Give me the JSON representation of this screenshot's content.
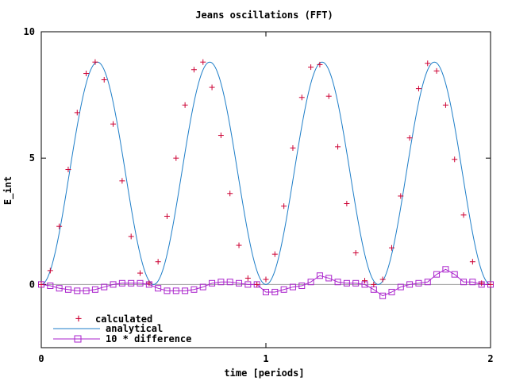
{
  "chart_data": {
    "type": "line",
    "title": "Jeans oscillations (FFT)",
    "xlabel": "time [periods]",
    "ylabel": "E_int",
    "xlim": [
      0,
      2
    ],
    "ylim": [
      -2.5,
      10
    ],
    "xticks": [
      0,
      1,
      2
    ],
    "yticks": [
      0,
      5,
      10
    ],
    "x_tick_labels": [
      "0",
      "1",
      "2"
    ],
    "y_tick_labels": [
      "0",
      "5",
      "10"
    ],
    "zero_line": true,
    "legend_position": "bottom-left",
    "series": [
      {
        "name": "calculated",
        "style": "points",
        "marker": "plus",
        "color": "#cc0033",
        "x": [
          0.0,
          0.04,
          0.08,
          0.12,
          0.16,
          0.2,
          0.24,
          0.28,
          0.32,
          0.36,
          0.4,
          0.44,
          0.48,
          0.52,
          0.56,
          0.6,
          0.64,
          0.68,
          0.72,
          0.76,
          0.8,
          0.84,
          0.88,
          0.92,
          0.96,
          1.0,
          1.04,
          1.08,
          1.12,
          1.16,
          1.2,
          1.24,
          1.28,
          1.32,
          1.36,
          1.4,
          1.44,
          1.48,
          1.52,
          1.56,
          1.6,
          1.64,
          1.68,
          1.72,
          1.76,
          1.8,
          1.84,
          1.88,
          1.92,
          1.96,
          2.0
        ],
        "y": [
          0.0,
          0.55,
          2.3,
          4.55,
          6.8,
          8.35,
          8.8,
          8.1,
          6.35,
          4.1,
          1.9,
          0.45,
          0.05,
          0.9,
          2.7,
          5.0,
          7.1,
          8.5,
          8.8,
          7.8,
          5.9,
          3.6,
          1.55,
          0.25,
          0.0,
          0.2,
          1.2,
          3.1,
          5.4,
          7.4,
          8.6,
          8.7,
          7.45,
          5.45,
          3.2,
          1.25,
          0.15,
          0.0,
          0.2,
          1.45,
          3.5,
          5.8,
          7.75,
          8.75,
          8.45,
          7.1,
          4.95,
          2.75,
          0.9,
          0.05,
          0.0
        ]
      },
      {
        "name": "analytical",
        "style": "line",
        "color": "#1e7ec8",
        "amplitude": 8.8,
        "function": "8.8 * sin^2(2*pi*t)"
      },
      {
        "name": "10 * difference",
        "style": "linespoints",
        "marker": "square",
        "color": "#aa22cc",
        "x": [
          0.0,
          0.04,
          0.08,
          0.12,
          0.16,
          0.2,
          0.24,
          0.28,
          0.32,
          0.36,
          0.4,
          0.44,
          0.48,
          0.52,
          0.56,
          0.6,
          0.64,
          0.68,
          0.72,
          0.76,
          0.8,
          0.84,
          0.88,
          0.92,
          0.96,
          1.0,
          1.04,
          1.08,
          1.12,
          1.16,
          1.2,
          1.24,
          1.28,
          1.32,
          1.36,
          1.4,
          1.44,
          1.48,
          1.52,
          1.56,
          1.6,
          1.64,
          1.68,
          1.72,
          1.76,
          1.8,
          1.84,
          1.88,
          1.92,
          1.96,
          2.0
        ],
        "y": [
          0.0,
          -0.05,
          -0.15,
          -0.2,
          -0.25,
          -0.25,
          -0.2,
          -0.1,
          0.0,
          0.05,
          0.05,
          0.05,
          0.0,
          -0.15,
          -0.25,
          -0.25,
          -0.25,
          -0.2,
          -0.1,
          0.05,
          0.1,
          0.1,
          0.05,
          0.0,
          0.0,
          -0.3,
          -0.3,
          -0.2,
          -0.1,
          -0.05,
          0.1,
          0.35,
          0.25,
          0.1,
          0.05,
          0.05,
          0.0,
          -0.2,
          -0.45,
          -0.3,
          -0.1,
          0.0,
          0.05,
          0.1,
          0.4,
          0.6,
          0.4,
          0.1,
          0.1,
          0.0,
          0.0
        ]
      }
    ]
  }
}
